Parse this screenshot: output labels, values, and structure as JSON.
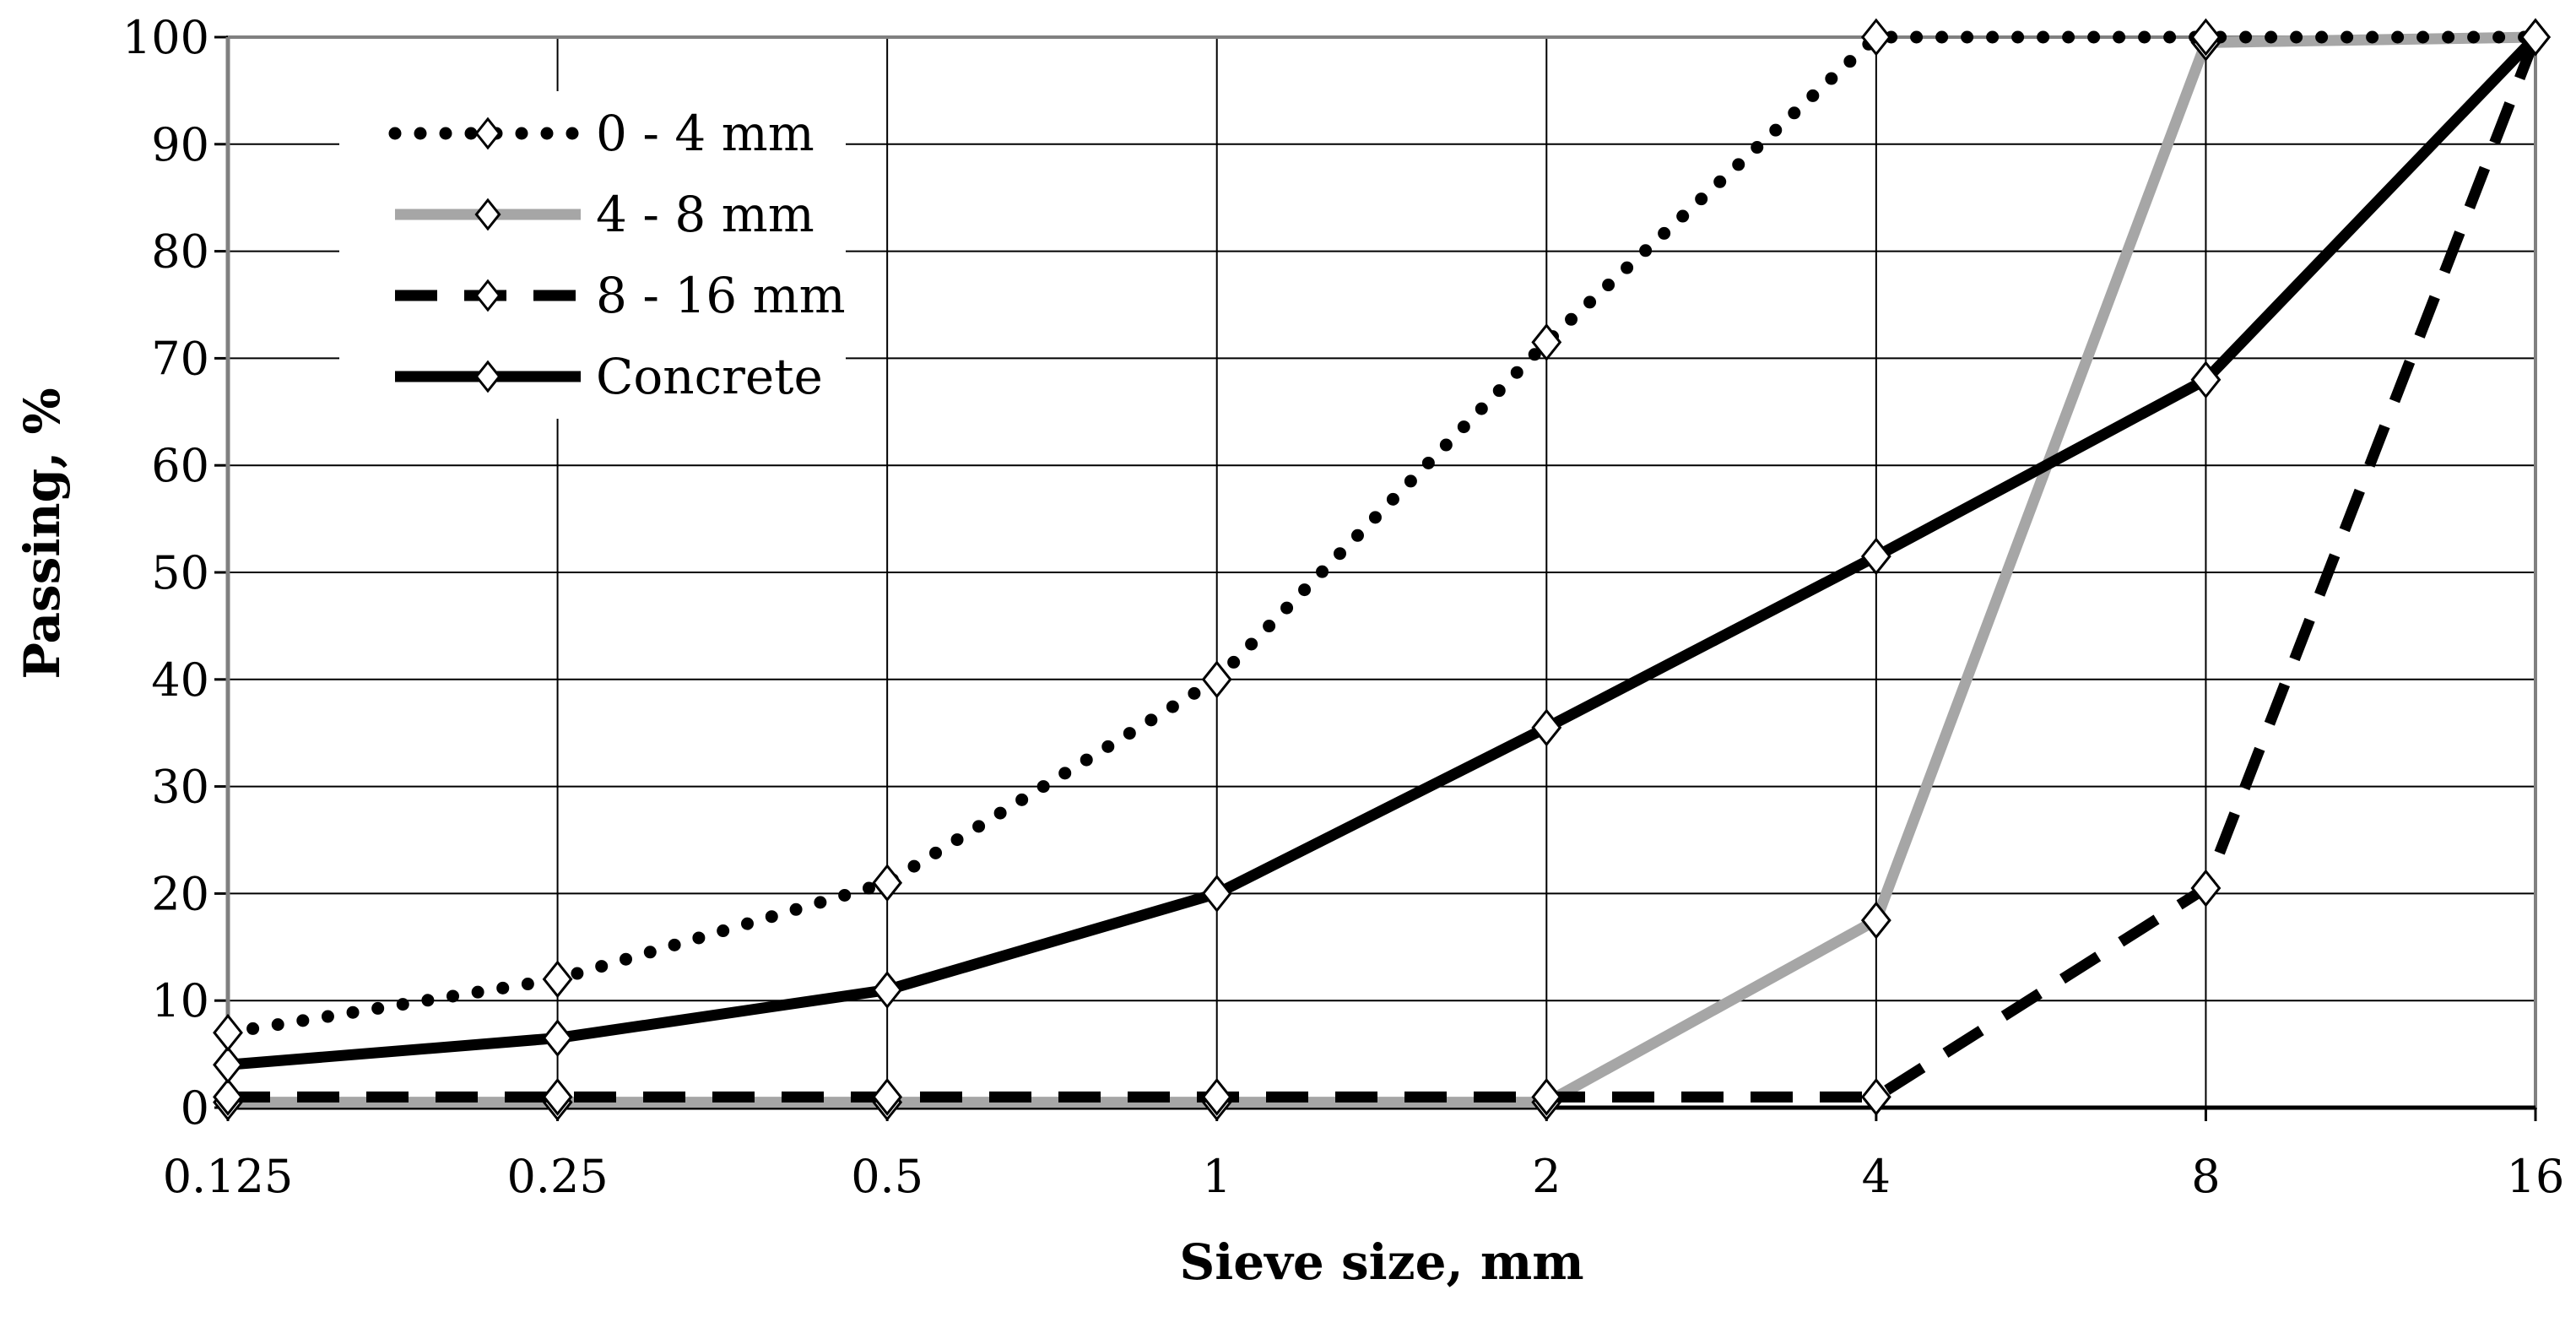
{
  "chart_data": {
    "type": "line",
    "title": "",
    "xlabel": "Sieve size, mm",
    "ylabel": "Passing, %",
    "x_scale": "log2",
    "categories": [
      "0.125",
      "0.25",
      "0.5",
      "1",
      "2",
      "4",
      "8",
      "16"
    ],
    "x": [
      0.125,
      0.25,
      0.5,
      1,
      2,
      4,
      8,
      16
    ],
    "ylim": [
      0,
      100
    ],
    "yticks": [
      0,
      10,
      20,
      30,
      40,
      50,
      60,
      70,
      80,
      90,
      100
    ],
    "grid": true,
    "legend_position": "top-left",
    "series": [
      {
        "name": "0 - 4 mm",
        "style": "dotted",
        "color": "#000000",
        "values": [
          7,
          12,
          21,
          40,
          71.5,
          100,
          100,
          100
        ]
      },
      {
        "name": "4 - 8 mm",
        "style": "solid",
        "color": "#a6a6a6",
        "values": [
          0.5,
          0.5,
          0.5,
          0.5,
          0.5,
          17.5,
          99.5,
          100
        ]
      },
      {
        "name": "8 - 16 mm",
        "style": "dashed",
        "color": "#000000",
        "values": [
          1,
          1,
          1,
          1,
          1,
          1,
          20.5,
          100
        ]
      },
      {
        "name": "Concrete",
        "style": "solid",
        "color": "#000000",
        "values": [
          4,
          6.5,
          11,
          20,
          35.5,
          51.5,
          68,
          100
        ]
      }
    ]
  }
}
